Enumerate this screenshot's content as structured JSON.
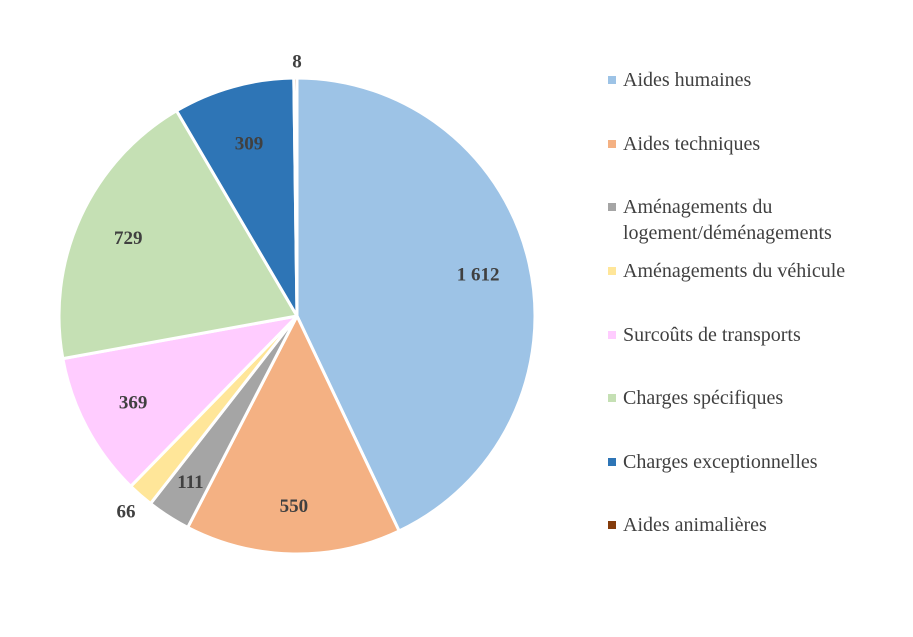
{
  "chart_data": {
    "type": "pie",
    "title": "",
    "slices": [
      {
        "name": "Aides humaines",
        "value": 1612,
        "label": "1 612",
        "color": "#9DC3E6"
      },
      {
        "name": "Aides techniques",
        "value": 550,
        "label": "550",
        "color": "#F4B183"
      },
      {
        "name": "Aménagements du logement/déménagements",
        "value": 111,
        "label": "111",
        "color": "#A5A5A5",
        "legend_lines": [
          "Aménagements du",
          "logement/déménagements"
        ]
      },
      {
        "name": "Aménagements du véhicule",
        "value": 66,
        "label": "66",
        "color": "#FFE699"
      },
      {
        "name": "Surcoûts de transports",
        "value": 369,
        "label": "369",
        "color": "#FFCCFF"
      },
      {
        "name": "Charges spécifiques",
        "value": 729,
        "label": "729",
        "color": "#C5E0B4"
      },
      {
        "name": "Charges exceptionnelles",
        "value": 309,
        "label": "309",
        "color": "#2E75B6"
      },
      {
        "name": "Aides animalières",
        "value": 8,
        "label": "8",
        "color": "#843C0C"
      }
    ],
    "legend_position": "right"
  }
}
